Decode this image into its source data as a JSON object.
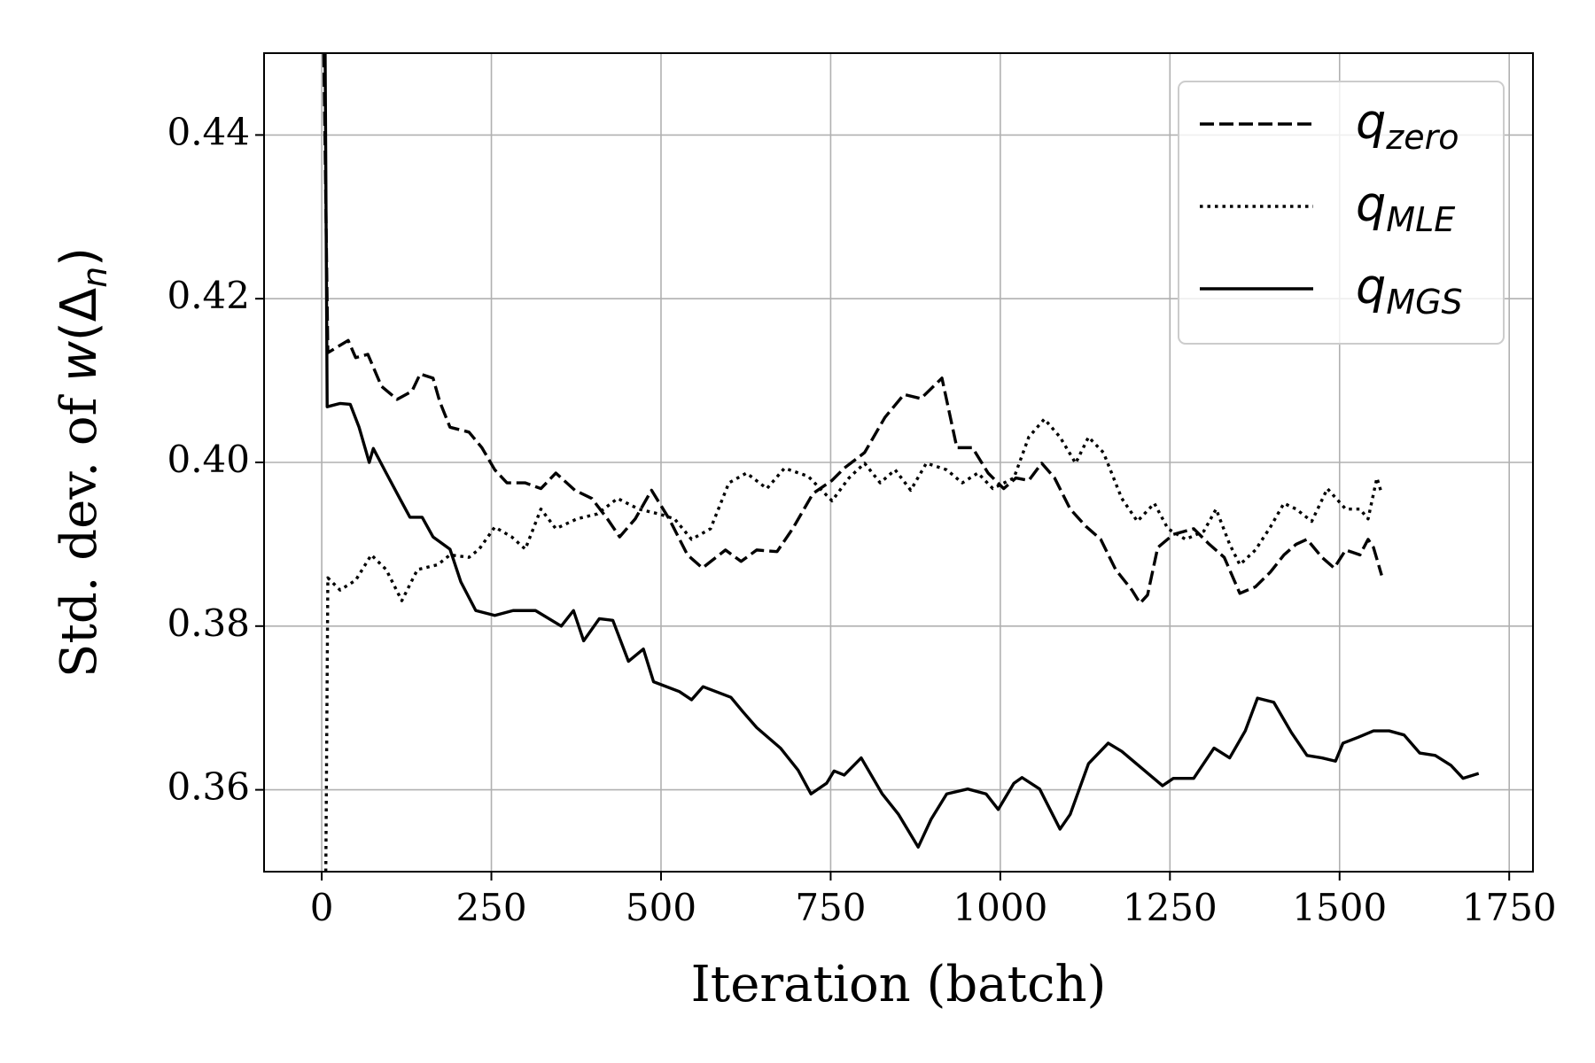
{
  "chart_data": {
    "type": "line",
    "xlabel": "Iteration (batch)",
    "ylabel": [
      "Std. dev. of ",
      "w",
      "(Δ",
      "n",
      ")"
    ],
    "xlim": [
      -85,
      1785
    ],
    "ylim": [
      0.35,
      0.45
    ],
    "xticks": [
      0,
      250,
      500,
      750,
      1000,
      1250,
      1500,
      1750
    ],
    "yticks": [
      0.36,
      0.38,
      {
        "value": 0.4,
        "label": "0.40"
      },
      0.42,
      0.44
    ],
    "grid": true,
    "legend": "upper right",
    "series": [
      {
        "name": [
          "q",
          "zero"
        ],
        "color": "#000000",
        "linestyle": "dashed",
        "x": [
          3,
          9,
          39,
          50,
          68,
          88,
          111,
          133,
          145,
          164,
          174,
          189,
          217,
          236,
          255,
          273,
          300,
          323,
          345,
          373,
          398,
          421,
          439,
          462,
          486,
          512,
          539,
          561,
          595,
          618,
          641,
          671,
          694,
          724,
          752,
          770,
          800,
          830,
          858,
          883,
          914,
          936,
          959,
          982,
          1005,
          1023,
          1042,
          1061,
          1080,
          1103,
          1126,
          1148,
          1170,
          1194,
          1206,
          1217,
          1232,
          1255,
          1285,
          1308,
          1330,
          1353,
          1376,
          1398,
          1418,
          1436,
          1452,
          1474,
          1492,
          1509,
          1530,
          1542,
          1550,
          1562
        ],
        "values": [
          0.45,
          0.4134,
          0.4149,
          0.4128,
          0.4132,
          0.4093,
          0.4077,
          0.4087,
          0.4108,
          0.4103,
          0.4074,
          0.4043,
          0.4037,
          0.4018,
          0.3991,
          0.3975,
          0.3975,
          0.3968,
          0.3987,
          0.3966,
          0.3956,
          0.3931,
          0.3909,
          0.3931,
          0.3966,
          0.3931,
          0.3887,
          0.3871,
          0.3893,
          0.3879,
          0.3893,
          0.3891,
          0.3919,
          0.3962,
          0.3978,
          0.3993,
          0.4012,
          0.4055,
          0.4083,
          0.4078,
          0.4103,
          0.4018,
          0.4018,
          0.3987,
          0.3968,
          0.3981,
          0.3978,
          0.3999,
          0.3981,
          0.3943,
          0.3922,
          0.3906,
          0.3869,
          0.3844,
          0.3828,
          0.3838,
          0.3896,
          0.3912,
          0.3919,
          0.39,
          0.3884,
          0.384,
          0.3848,
          0.3866,
          0.3887,
          0.39,
          0.3906,
          0.3884,
          0.3871,
          0.3893,
          0.3887,
          0.3906,
          0.3896,
          0.3862
        ]
      },
      {
        "name": [
          "q",
          "MLE"
        ],
        "color": "#000000",
        "linestyle": "dotted",
        "x": [
          6,
          9,
          27,
          50,
          73,
          95,
          118,
          141,
          171,
          189,
          217,
          232,
          255,
          280,
          300,
          323,
          345,
          376,
          406,
          436,
          467,
          497,
          520,
          545,
          573,
          600,
          626,
          656,
          682,
          717,
          752,
          777,
          800,
          823,
          845,
          868,
          891,
          921,
          944,
          967,
          989,
          1020,
          1042,
          1065,
          1088,
          1111,
          1130,
          1152,
          1179,
          1202,
          1227,
          1247,
          1273,
          1300,
          1318,
          1338,
          1353,
          1376,
          1398,
          1418,
          1436,
          1459,
          1482,
          1509,
          1530,
          1542,
          1555,
          1562
        ],
        "values": [
          0.35,
          0.3859,
          0.3844,
          0.3856,
          0.3887,
          0.3869,
          0.3831,
          0.3869,
          0.3875,
          0.3887,
          0.3884,
          0.3894,
          0.3921,
          0.3909,
          0.3894,
          0.3943,
          0.3919,
          0.3931,
          0.3937,
          0.3956,
          0.3943,
          0.3937,
          0.3931,
          0.3906,
          0.3919,
          0.3975,
          0.3987,
          0.3968,
          0.3993,
          0.3983,
          0.3953,
          0.3981,
          0.3999,
          0.3975,
          0.3991,
          0.3966,
          0.3999,
          0.3991,
          0.3975,
          0.3987,
          0.3968,
          0.3981,
          0.4031,
          0.4053,
          0.4031,
          0.3999,
          0.4031,
          0.4012,
          0.3956,
          0.3928,
          0.395,
          0.3919,
          0.3906,
          0.3916,
          0.3943,
          0.39,
          0.3875,
          0.3893,
          0.3921,
          0.395,
          0.3943,
          0.3928,
          0.3968,
          0.3943,
          0.3943,
          0.3931,
          0.3981,
          0.3962
        ]
      },
      {
        "name": [
          "q",
          "MGS"
        ],
        "color": "#000000",
        "linestyle": "solid",
        "x": [
          5,
          8,
          27,
          42,
          55,
          70,
          76,
          95,
          115,
          130,
          148,
          164,
          189,
          205,
          227,
          255,
          282,
          315,
          353,
          371,
          386,
          409,
          429,
          452,
          474,
          489,
          527,
          545,
          562,
          603,
          621,
          641,
          676,
          702,
          721,
          744,
          755,
          770,
          795,
          826,
          850,
          879,
          898,
          921,
          952,
          979,
          997,
          1020,
          1032,
          1058,
          1088,
          1103,
          1130,
          1159,
          1179,
          1209,
          1239,
          1255,
          1285,
          1315,
          1338,
          1361,
          1379,
          1403,
          1429,
          1452,
          1474,
          1494,
          1505,
          1527,
          1550,
          1573,
          1595,
          1618,
          1641,
          1664,
          1682,
          1705
        ],
        "values": [
          0.45,
          0.4068,
          0.4072,
          0.4071,
          0.4043,
          0.4,
          0.4017,
          0.3987,
          0.3956,
          0.3933,
          0.3933,
          0.3909,
          0.3894,
          0.3854,
          0.3819,
          0.3813,
          0.3819,
          0.3819,
          0.38,
          0.3819,
          0.3782,
          0.3809,
          0.3807,
          0.3757,
          0.3772,
          0.3732,
          0.372,
          0.371,
          0.3726,
          0.3713,
          0.3695,
          0.3676,
          0.3651,
          0.3624,
          0.3595,
          0.3608,
          0.3623,
          0.3618,
          0.3639,
          0.3595,
          0.357,
          0.353,
          0.3564,
          0.3595,
          0.3601,
          0.3595,
          0.3576,
          0.3608,
          0.3615,
          0.3601,
          0.3552,
          0.357,
          0.3632,
          0.3657,
          0.3647,
          0.3626,
          0.3605,
          0.3614,
          0.3614,
          0.3651,
          0.3639,
          0.3672,
          0.3712,
          0.3707,
          0.367,
          0.3642,
          0.3639,
          0.3635,
          0.3657,
          0.3664,
          0.3672,
          0.3672,
          0.3667,
          0.3645,
          0.3642,
          0.363,
          0.3614,
          0.362
        ]
      }
    ]
  }
}
